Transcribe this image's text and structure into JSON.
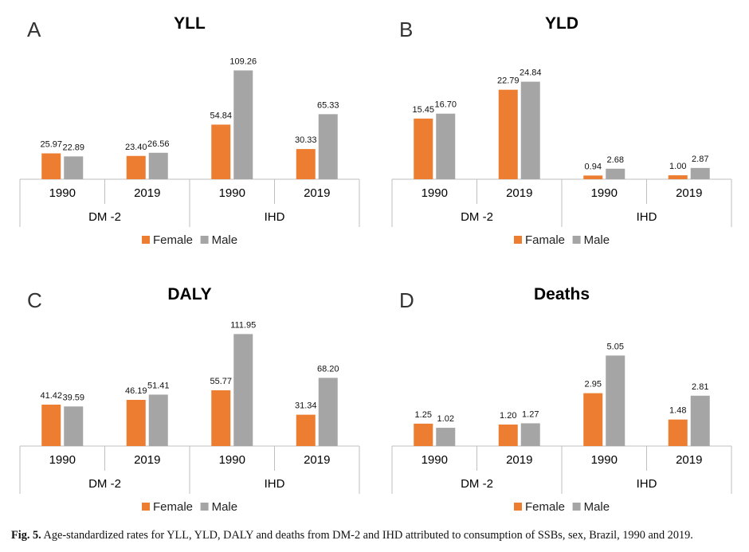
{
  "colors": {
    "female": "#ED7D31",
    "male": "#A5A5A5",
    "axis": "#BFBFBF",
    "text": "#000000"
  },
  "caption": {
    "label": "Fig. 5.",
    "text": "Age-standardized rates for YLL, YLD, DALY and deaths from DM-2 and IHD attributed to consumption of SSBs, sex, Brazil, 1990 and 2019."
  },
  "chart_data": [
    {
      "panel": "A",
      "type": "bar",
      "title": "YLL",
      "groups": [
        "DM -2",
        "IHD"
      ],
      "categories": [
        "1990",
        "2019",
        "1990",
        "2019"
      ],
      "series": [
        {
          "name": "Female",
          "values": [
            25.97,
            23.4,
            54.84,
            30.33
          ],
          "labels": [
            "25.97",
            "23.40",
            "54.84",
            "30.33"
          ]
        },
        {
          "name": "Male",
          "values": [
            22.89,
            26.56,
            109.26,
            65.33
          ],
          "labels": [
            "22.89",
            "26.56",
            "109.26",
            "65.33"
          ]
        }
      ],
      "ylim": [
        0,
        120
      ]
    },
    {
      "panel": "B",
      "type": "bar",
      "title": "YLD",
      "groups": [
        "DM -2",
        "IHD"
      ],
      "categories": [
        "1990",
        "2019",
        "1990",
        "2019"
      ],
      "series": [
        {
          "name": "Famale",
          "values": [
            15.45,
            22.79,
            0.94,
            1.0
          ],
          "labels": [
            "15.45",
            "22.79",
            "0.94",
            "1.00"
          ]
        },
        {
          "name": "Male",
          "values": [
            16.7,
            24.84,
            2.68,
            2.87
          ],
          "labels": [
            "16.70",
            "24.84",
            "2.68",
            "2.87"
          ]
        }
      ],
      "ylim": [
        0,
        28
      ]
    },
    {
      "panel": "C",
      "type": "bar",
      "title": "DALY",
      "groups": [
        "DM -2",
        "IHD"
      ],
      "categories": [
        "1990",
        "2019",
        "1990",
        "2019"
      ],
      "series": [
        {
          "name": "Female",
          "values": [
            41.42,
            46.19,
            55.77,
            31.34
          ],
          "labels": [
            "41.42",
            "46.19",
            "55.77",
            "31.34"
          ]
        },
        {
          "name": "Male",
          "values": [
            39.59,
            51.41,
            111.95,
            68.2
          ],
          "labels": [
            "39.59",
            "51.41",
            "111.95",
            "68.20"
          ]
        }
      ],
      "ylim": [
        0,
        125
      ]
    },
    {
      "panel": "D",
      "type": "bar",
      "title": "Deaths",
      "groups": [
        "DM -2",
        "IHD"
      ],
      "categories": [
        "1990",
        "2019",
        "1990",
        "2019"
      ],
      "series": [
        {
          "name": "Female",
          "values": [
            1.25,
            1.2,
            2.95,
            1.48
          ],
          "labels": [
            "1.25",
            "1.20",
            "2.95",
            "1.48"
          ]
        },
        {
          "name": "Male",
          "values": [
            1.02,
            1.27,
            5.05,
            2.81
          ],
          "labels": [
            "1.02",
            "1.27",
            "5.05",
            "2.81"
          ]
        }
      ],
      "ylim": [
        0,
        5.6
      ]
    }
  ]
}
